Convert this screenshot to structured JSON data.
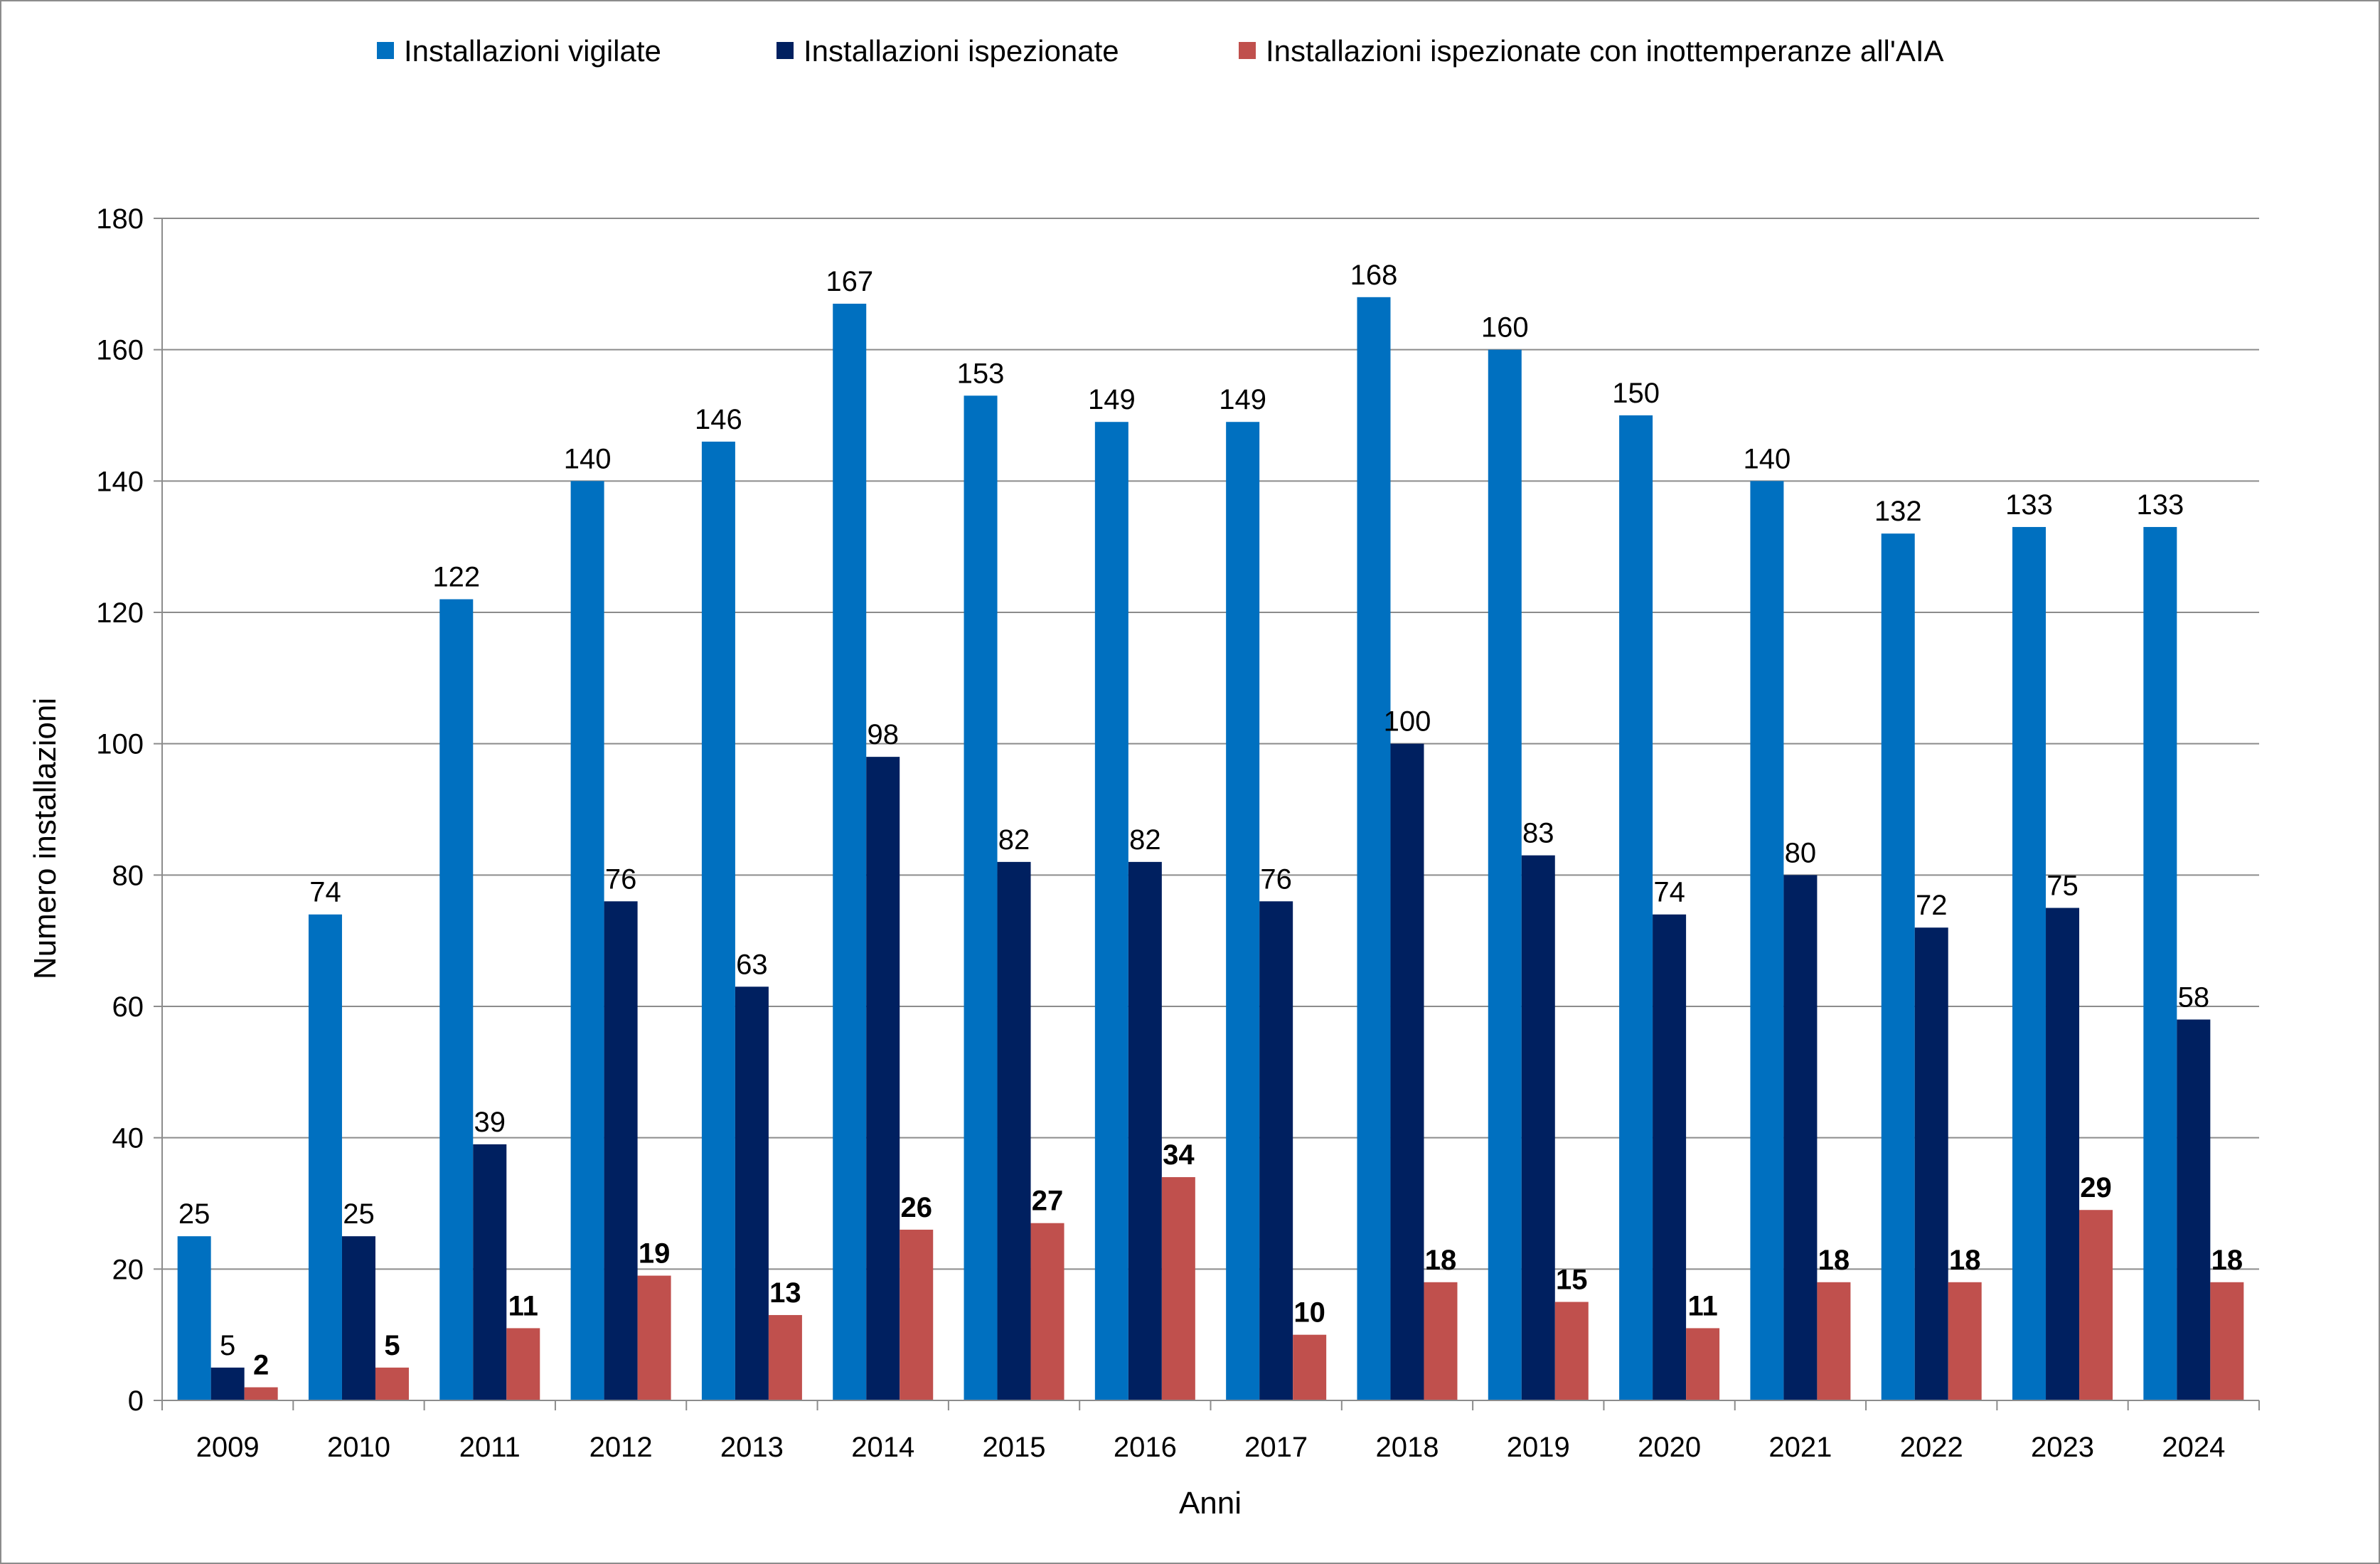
{
  "chart_data": {
    "type": "bar",
    "title": "",
    "xlabel": "Anni",
    "ylabel": "Numero installazioni",
    "ylim": [
      0,
      180
    ],
    "yticks": [
      0,
      20,
      40,
      60,
      80,
      100,
      120,
      140,
      160,
      180
    ],
    "grid": true,
    "legend_position": "top",
    "categories": [
      "2009",
      "2010",
      "2011",
      "2012",
      "2013",
      "2014",
      "2015",
      "2016",
      "2017",
      "2018",
      "2019",
      "2020",
      "2021",
      "2022",
      "2023",
      "2024"
    ],
    "series": [
      {
        "name": "Installazioni vigilate",
        "color": "#0070C0",
        "label_bold": false,
        "values": [
          25,
          74,
          122,
          140,
          146,
          167,
          153,
          149,
          149,
          168,
          160,
          150,
          140,
          132,
          133,
          133
        ]
      },
      {
        "name": "Installazioni ispezionate",
        "color": "#002060",
        "label_bold": false,
        "values": [
          5,
          25,
          39,
          76,
          63,
          98,
          82,
          82,
          76,
          100,
          83,
          74,
          80,
          72,
          75,
          58
        ]
      },
      {
        "name": "Installazioni ispezionate con inottemperanze all'AIA",
        "color": "#C0504D",
        "label_bold": true,
        "values": [
          2,
          5,
          11,
          19,
          13,
          26,
          27,
          34,
          10,
          18,
          15,
          11,
          18,
          18,
          29,
          18
        ]
      }
    ]
  }
}
